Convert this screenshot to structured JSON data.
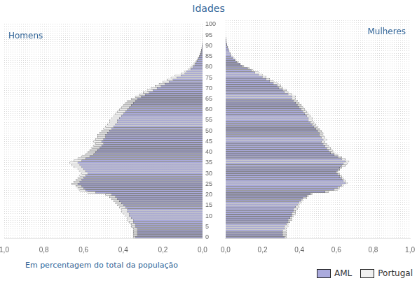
{
  "chart_data": [
    {
      "type": "bar",
      "orientation": "horizontal",
      "title": "Idades",
      "xlabel": "Em percentagem do total da população",
      "annotations": [
        "Homens"
      ],
      "categories": [
        0,
        null,
        null,
        null,
        null,
        5,
        null,
        null,
        null,
        null,
        10,
        null,
        null,
        null,
        null,
        15,
        null,
        null,
        null,
        null,
        20,
        null,
        null,
        null,
        null,
        25,
        null,
        null,
        null,
        null,
        30,
        null,
        null,
        null,
        null,
        35,
        null,
        null,
        null,
        null,
        40,
        null,
        null,
        null,
        null,
        45,
        null,
        null,
        null,
        null,
        50,
        null,
        null,
        null,
        null,
        55,
        null,
        null,
        null,
        null,
        60,
        null,
        null,
        null,
        null,
        65,
        null,
        null,
        null,
        null,
        70,
        null,
        null,
        null,
        null,
        75,
        null,
        null,
        null,
        null,
        80,
        null,
        null,
        null,
        null,
        85,
        null,
        null,
        null,
        null,
        90,
        null,
        null,
        null,
        null,
        95,
        null,
        null,
        null,
        null,
        100
      ],
      "series": [
        {
          "name": "Portugal",
          "color": "#f0f0f0",
          "values": [
            0.35,
            0.35,
            0.35,
            0.35,
            0.35,
            0.36,
            0.36,
            0.37,
            0.38,
            0.38,
            0.39,
            0.4,
            0.41,
            0.41,
            0.42,
            0.43,
            0.44,
            0.45,
            0.46,
            0.47,
            0.49,
            0.58,
            0.62,
            0.63,
            0.64,
            0.66,
            0.65,
            0.64,
            0.63,
            0.62,
            0.61,
            0.62,
            0.63,
            0.65,
            0.66,
            0.67,
            0.65,
            0.63,
            0.61,
            0.59,
            0.58,
            0.57,
            0.56,
            0.55,
            0.54,
            0.55,
            0.54,
            0.53,
            0.53,
            0.52,
            0.51,
            0.5,
            0.49,
            0.48,
            0.47,
            0.47,
            0.46,
            0.45,
            0.44,
            0.43,
            0.42,
            0.41,
            0.4,
            0.39,
            0.38,
            0.36,
            0.34,
            0.32,
            0.3,
            0.28,
            0.26,
            0.24,
            0.22,
            0.2,
            0.18,
            0.16,
            0.14,
            0.11,
            0.09,
            0.07,
            0.06,
            0.05,
            0.04,
            0.03,
            0.024,
            0.018,
            0.014,
            0.01,
            0.007,
            0.005,
            0.003,
            0.002,
            0.001,
            0.001,
            0.001,
            0.001,
            0.0005,
            0.0005,
            0.0005,
            0.0005,
            0.0005
          ]
        },
        {
          "name": "AML",
          "color": "#aaaadd",
          "values": [
            0.34,
            0.33,
            0.33,
            0.33,
            0.33,
            0.34,
            0.34,
            0.35,
            0.35,
            0.36,
            0.37,
            0.37,
            0.38,
            0.38,
            0.39,
            0.4,
            0.41,
            0.42,
            0.43,
            0.44,
            0.46,
            0.54,
            0.59,
            0.6,
            0.61,
            0.63,
            0.62,
            0.61,
            0.6,
            0.59,
            0.58,
            0.59,
            0.6,
            0.61,
            0.62,
            0.63,
            0.61,
            0.59,
            0.57,
            0.55,
            0.54,
            0.53,
            0.52,
            0.51,
            0.5,
            0.51,
            0.5,
            0.49,
            0.49,
            0.48,
            0.47,
            0.46,
            0.45,
            0.44,
            0.43,
            0.43,
            0.42,
            0.41,
            0.4,
            0.39,
            0.38,
            0.37,
            0.36,
            0.35,
            0.34,
            0.33,
            0.31,
            0.29,
            0.27,
            0.25,
            0.23,
            0.21,
            0.19,
            0.17,
            0.15,
            0.13,
            0.11,
            0.09,
            0.08,
            0.06,
            0.05,
            0.04,
            0.035,
            0.028,
            0.022,
            0.016,
            0.012,
            0.008,
            0.006,
            0.004,
            0.003,
            0.002,
            0.001,
            0.001,
            0.001,
            0.001,
            0.0005,
            0.0005,
            0.0005,
            0.0005,
            0.0005
          ]
        }
      ],
      "xlim": [
        1.0,
        0.0
      ],
      "xticks": [
        {
          "value": 0.0,
          "label": "0,0"
        },
        {
          "value": 0.2,
          "label": "0,2"
        },
        {
          "value": 0.4,
          "label": "0,4"
        },
        {
          "value": 0.6,
          "label": "0,6"
        },
        {
          "value": 0.8,
          "label": "0,8"
        },
        {
          "value": 1.0,
          "label": "1,0"
        }
      ],
      "grid": true
    },
    {
      "type": "bar",
      "orientation": "horizontal",
      "annotations": [
        "Mulheres"
      ],
      "categories": [
        0,
        null,
        null,
        null,
        null,
        5,
        null,
        null,
        null,
        null,
        10,
        null,
        null,
        null,
        null,
        15,
        null,
        null,
        null,
        null,
        20,
        null,
        null,
        null,
        null,
        25,
        null,
        null,
        null,
        null,
        30,
        null,
        null,
        null,
        null,
        35,
        null,
        null,
        null,
        null,
        40,
        null,
        null,
        null,
        null,
        45,
        null,
        null,
        null,
        null,
        50,
        null,
        null,
        null,
        null,
        55,
        null,
        null,
        null,
        null,
        60,
        null,
        null,
        null,
        null,
        65,
        null,
        null,
        null,
        null,
        70,
        null,
        null,
        null,
        null,
        75,
        null,
        null,
        null,
        null,
        80,
        null,
        null,
        null,
        null,
        85,
        null,
        null,
        null,
        null,
        90,
        null,
        null,
        null,
        null,
        95,
        null,
        null,
        null,
        null,
        100
      ],
      "series": [
        {
          "name": "Portugal",
          "color": "#f0f0f0",
          "values": [
            0.33,
            0.33,
            0.33,
            0.33,
            0.33,
            0.34,
            0.34,
            0.35,
            0.36,
            0.36,
            0.37,
            0.38,
            0.38,
            0.39,
            0.4,
            0.4,
            0.41,
            0.42,
            0.44,
            0.45,
            0.47,
            0.56,
            0.61,
            0.62,
            0.64,
            0.66,
            0.65,
            0.64,
            0.63,
            0.62,
            0.61,
            0.62,
            0.63,
            0.65,
            0.66,
            0.67,
            0.65,
            0.63,
            0.61,
            0.59,
            0.58,
            0.57,
            0.56,
            0.55,
            0.54,
            0.55,
            0.54,
            0.53,
            0.53,
            0.52,
            0.51,
            0.5,
            0.49,
            0.48,
            0.47,
            0.47,
            0.46,
            0.45,
            0.44,
            0.43,
            0.42,
            0.41,
            0.4,
            0.39,
            0.38,
            0.38,
            0.36,
            0.34,
            0.33,
            0.31,
            0.3,
            0.28,
            0.26,
            0.24,
            0.22,
            0.2,
            0.18,
            0.15,
            0.13,
            0.1,
            0.08,
            0.07,
            0.055,
            0.042,
            0.03,
            0.025,
            0.02,
            0.014,
            0.01,
            0.007,
            0.005,
            0.003,
            0.002,
            0.001,
            0.001,
            0.001,
            0.0005,
            0.0005,
            0.0005,
            0.0005,
            0.0005
          ]
        },
        {
          "name": "AML",
          "color": "#aaaadd",
          "values": [
            0.32,
            0.31,
            0.31,
            0.31,
            0.32,
            0.32,
            0.33,
            0.34,
            0.34,
            0.35,
            0.36,
            0.36,
            0.37,
            0.37,
            0.38,
            0.39,
            0.4,
            0.41,
            0.42,
            0.44,
            0.46,
            0.54,
            0.59,
            0.61,
            0.63,
            0.65,
            0.64,
            0.63,
            0.62,
            0.61,
            0.6,
            0.61,
            0.62,
            0.63,
            0.64,
            0.65,
            0.63,
            0.61,
            0.59,
            0.57,
            0.56,
            0.55,
            0.54,
            0.53,
            0.52,
            0.53,
            0.52,
            0.51,
            0.51,
            0.5,
            0.49,
            0.48,
            0.47,
            0.46,
            0.45,
            0.45,
            0.44,
            0.43,
            0.42,
            0.41,
            0.4,
            0.39,
            0.38,
            0.37,
            0.36,
            0.36,
            0.34,
            0.32,
            0.31,
            0.29,
            0.28,
            0.26,
            0.24,
            0.22,
            0.2,
            0.18,
            0.16,
            0.14,
            0.12,
            0.09,
            0.08,
            0.06,
            0.05,
            0.04,
            0.03,
            0.025,
            0.02,
            0.015,
            0.01,
            0.007,
            0.005,
            0.003,
            0.002,
            0.001,
            0.001,
            0.001,
            0.0005,
            0.0005,
            0.0005,
            0.0005,
            0.0005
          ]
        }
      ],
      "xlim": [
        0.0,
        1.0
      ],
      "xticks": [
        {
          "value": 0.0,
          "label": "0,0"
        },
        {
          "value": 0.2,
          "label": "0,2"
        },
        {
          "value": 0.4,
          "label": "0,4"
        },
        {
          "value": 0.6,
          "label": "0,6"
        },
        {
          "value": 0.8,
          "label": "0,8"
        },
        {
          "value": 1.0,
          "label": "1,0"
        }
      ],
      "grid": true,
      "legend": "lower right",
      "tick_labels": "x"
    }
  ]
}
